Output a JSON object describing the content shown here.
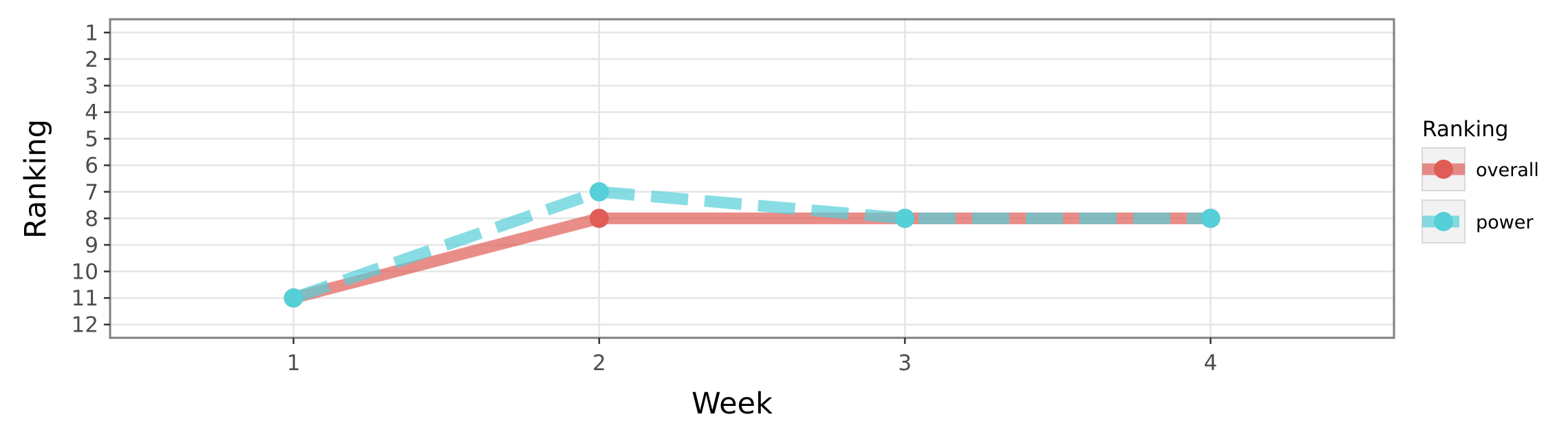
{
  "chart_data": {
    "type": "line",
    "x": [
      1,
      2,
      3,
      4
    ],
    "series": [
      {
        "name": "overall",
        "values": [
          11,
          8,
          8,
          8
        ],
        "color": "#df5d56",
        "linestyle": "solid"
      },
      {
        "name": "power",
        "values": [
          11,
          7,
          8,
          8
        ],
        "color": "#55cfd8",
        "linestyle": "dashed"
      }
    ],
    "xlabel": "Week",
    "ylabel": "Ranking",
    "xticks": [
      "1",
      "2",
      "3",
      "4"
    ],
    "yticks": [
      "1",
      "2",
      "3",
      "4",
      "5",
      "6",
      "7",
      "8",
      "9",
      "10",
      "11",
      "12"
    ],
    "xlim": [
      0.4,
      4.6
    ],
    "ylim": [
      12.5,
      0.5
    ],
    "y_reversed": true,
    "grid": true,
    "legend_title": "Ranking",
    "legend_position": "right"
  }
}
